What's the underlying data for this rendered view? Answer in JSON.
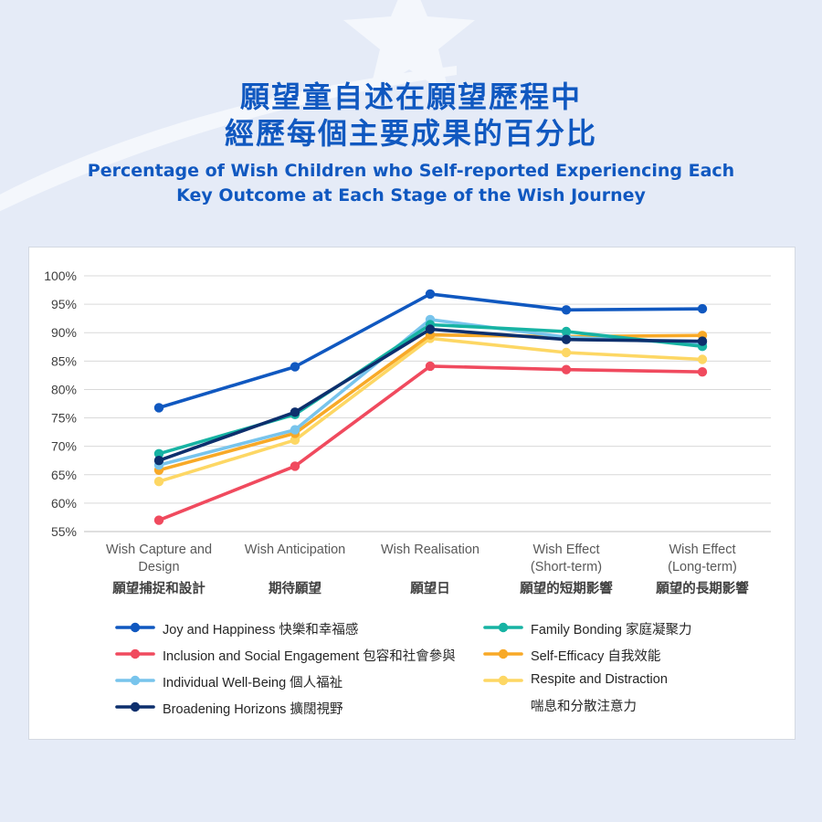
{
  "header": {
    "title_zh_line1": "願望童自述在願望歷程中",
    "title_zh_line2": "經歷每個主要成果的百分比",
    "title_en_line1": "Percentage of Wish Children who Self-reported Experiencing Each",
    "title_en_line2": "Key Outcome at Each Stage of the Wish Journey"
  },
  "chart_data": {
    "type": "line",
    "title": "Percentage of Wish Children who Self-reported Experiencing Each Key Outcome at Each Stage of the Wish Journey",
    "ylim": [
      55,
      100
    ],
    "y_ticks": [
      "100%",
      "95%",
      "90%",
      "85%",
      "80%",
      "75%",
      "70%",
      "65%",
      "60%",
      "55%"
    ],
    "grid": true,
    "legend_position": "bottom",
    "categories": [
      {
        "en_line1": "Wish Capture and",
        "en_line2": "Design",
        "zh": "願望捕捉和設計"
      },
      {
        "en_line1": "Wish Anticipation",
        "en_line2": "",
        "zh": "期待願望"
      },
      {
        "en_line1": "Wish Realisation",
        "en_line2": "",
        "zh": "願望日"
      },
      {
        "en_line1": "Wish Effect",
        "en_line2": "(Short-term)",
        "zh": "願望的短期影響"
      },
      {
        "en_line1": "Wish Effect",
        "en_line2": "(Long-term)",
        "zh": "願望的長期影響"
      }
    ],
    "series": [
      {
        "name": "Respite and Distraction",
        "name_zh": "喘息和分散注意力",
        "color": "#fdd764",
        "values": [
          63.8,
          71.1,
          89.0,
          86.5,
          85.3
        ]
      },
      {
        "name": "Inclusion and Social Engagement",
        "name_zh": "包容和社會參與",
        "color": "#f04a5e",
        "values": [
          57.0,
          66.5,
          84.1,
          83.5,
          83.1
        ]
      },
      {
        "name": "Self-Efficacy",
        "name_zh": "自我效能",
        "color": "#f8a927",
        "values": [
          65.8,
          72.3,
          89.6,
          89.3,
          89.5
        ]
      },
      {
        "name": "Individual Well-Being",
        "name_zh": "個人福祉",
        "color": "#78c4ec",
        "values": [
          66.7,
          72.9,
          92.3,
          89.2,
          88.1
        ]
      },
      {
        "name": "Family Bonding",
        "name_zh": "家庭凝聚力",
        "color": "#17b3a3",
        "values": [
          68.7,
          75.6,
          91.4,
          90.2,
          87.6
        ]
      },
      {
        "name": "Broadening Horizons",
        "name_zh": "擴闊視野",
        "color": "#0d2f6d",
        "values": [
          67.5,
          76.0,
          90.6,
          88.8,
          88.5
        ]
      },
      {
        "name": "Joy and Happiness",
        "name_zh": "快樂和幸福感",
        "color": "#1058c0",
        "values": [
          76.8,
          84.0,
          96.8,
          94.0,
          94.2
        ]
      }
    ]
  },
  "legend": [
    {
      "series": 6,
      "text": "Joy and Happiness 快樂和幸福感",
      "text2": ""
    },
    {
      "series": 1,
      "text": "Inclusion and Social Engagement 包容和社會參與",
      "text2": ""
    },
    {
      "series": 3,
      "text": "Individual Well-Being 個人福祉",
      "text2": ""
    },
    {
      "series": 5,
      "text": "Broadening Horizons 擴闊視野",
      "text2": ""
    },
    {
      "series": 4,
      "text": "Family Bonding 家庭凝聚力",
      "text2": ""
    },
    {
      "series": 2,
      "text": "Self-Efficacy 自我效能",
      "text2": ""
    },
    {
      "series": 0,
      "text": "Respite and Distraction",
      "text2": "喘息和分散注意力"
    }
  ]
}
